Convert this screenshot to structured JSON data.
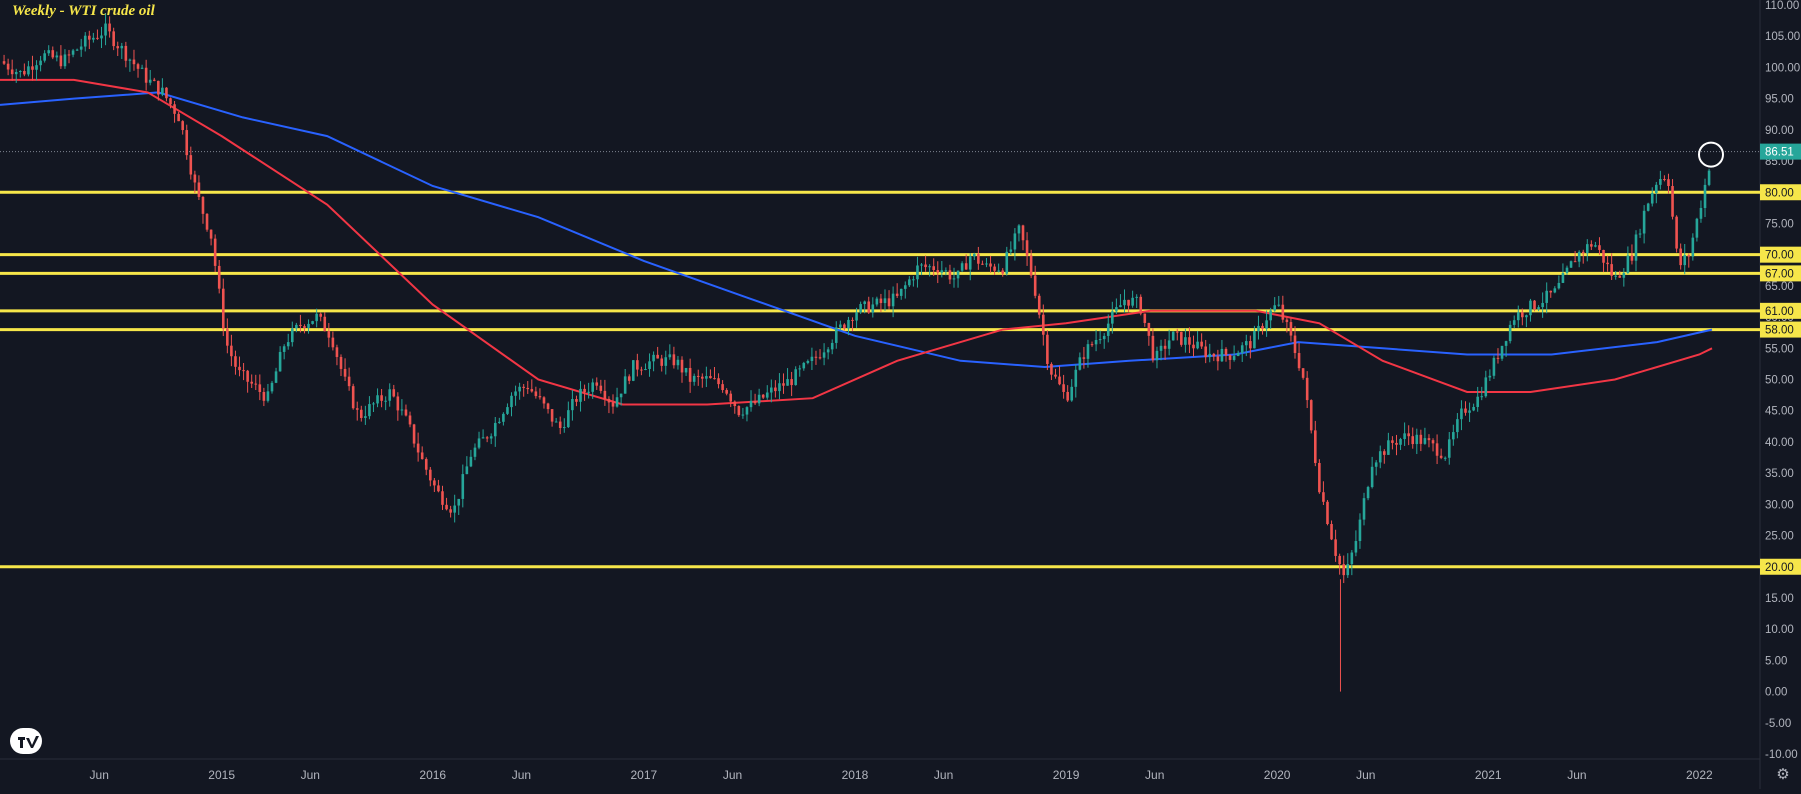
{
  "chart_data": {
    "type": "candlestick",
    "title": "Weekly - WTI crude oil",
    "ylim": [
      -10,
      110
    ],
    "y_ticks": [
      "110.00",
      "105.00",
      "100.00",
      "95.00",
      "90.00",
      "85.00",
      "80.00",
      "75.00",
      "70.00",
      "65.00",
      "60.00",
      "55.00",
      "50.00",
      "45.00",
      "40.00",
      "35.00",
      "30.00",
      "25.00",
      "20.00",
      "15.00",
      "10.00",
      "5.00",
      "0.00",
      "-5.00",
      "-10.00"
    ],
    "x_ticks": [
      {
        "label": "Jun",
        "year": 2014.42
      },
      {
        "label": "2015",
        "year": 2015.0
      },
      {
        "label": "Jun",
        "year": 2015.42
      },
      {
        "label": "2016",
        "year": 2016.0
      },
      {
        "label": "Jun",
        "year": 2016.42
      },
      {
        "label": "2017",
        "year": 2017.0
      },
      {
        "label": "Jun",
        "year": 2017.42
      },
      {
        "label": "2018",
        "year": 2018.0
      },
      {
        "label": "Jun",
        "year": 2018.42
      },
      {
        "label": "2019",
        "year": 2019.0
      },
      {
        "label": "Jun",
        "year": 2019.42
      },
      {
        "label": "2020",
        "year": 2020.0
      },
      {
        "label": "Jun",
        "year": 2020.42
      },
      {
        "label": "2021",
        "year": 2021.0
      },
      {
        "label": "Jun",
        "year": 2021.42
      },
      {
        "label": "2022",
        "year": 2022.0
      }
    ],
    "last_price": "86.51",
    "horizontal_levels": [
      "80.00",
      "70.00",
      "67.00",
      "61.00",
      "58.00",
      "20.00"
    ],
    "colors": {
      "up": "#26a69a",
      "down": "#ef5350",
      "ma_short": "#f23645",
      "ma_long": "#2962ff",
      "levels": "#f6e64a",
      "background": "#131722"
    },
    "price_path": [
      [
        2013.95,
        101
      ],
      [
        2014.05,
        99
      ],
      [
        2014.15,
        102
      ],
      [
        2014.25,
        101
      ],
      [
        2014.35,
        104
      ],
      [
        2014.45,
        106
      ],
      [
        2014.55,
        102
      ],
      [
        2014.65,
        98
      ],
      [
        2014.72,
        96
      ],
      [
        2014.8,
        92
      ],
      [
        2014.88,
        80
      ],
      [
        2014.95,
        73
      ],
      [
        2015.02,
        56
      ],
      [
        2015.08,
        51
      ],
      [
        2015.15,
        49
      ],
      [
        2015.22,
        47
      ],
      [
        2015.3,
        56
      ],
      [
        2015.38,
        59
      ],
      [
        2015.45,
        60
      ],
      [
        2015.52,
        57
      ],
      [
        2015.58,
        50
      ],
      [
        2015.65,
        44
      ],
      [
        2015.72,
        46
      ],
      [
        2015.8,
        48
      ],
      [
        2015.88,
        43
      ],
      [
        2015.95,
        37
      ],
      [
        2016.02,
        32
      ],
      [
        2016.1,
        29
      ],
      [
        2016.18,
        38
      ],
      [
        2016.28,
        42
      ],
      [
        2016.38,
        48
      ],
      [
        2016.45,
        49
      ],
      [
        2016.52,
        46
      ],
      [
        2016.6,
        42
      ],
      [
        2016.68,
        47
      ],
      [
        2016.78,
        50
      ],
      [
        2016.85,
        46
      ],
      [
        2016.95,
        52
      ],
      [
        2017.05,
        53
      ],
      [
        2017.15,
        53
      ],
      [
        2017.22,
        50
      ],
      [
        2017.3,
        50
      ],
      [
        2017.38,
        49
      ],
      [
        2017.45,
        45
      ],
      [
        2017.52,
        46
      ],
      [
        2017.6,
        48
      ],
      [
        2017.7,
        50
      ],
      [
        2017.8,
        53
      ],
      [
        2017.9,
        57
      ],
      [
        2018.0,
        61
      ],
      [
        2018.1,
        62
      ],
      [
        2018.2,
        63
      ],
      [
        2018.3,
        68
      ],
      [
        2018.4,
        68
      ],
      [
        2018.48,
        66
      ],
      [
        2018.55,
        70
      ],
      [
        2018.62,
        68
      ],
      [
        2018.7,
        68
      ],
      [
        2018.78,
        74
      ],
      [
        2018.85,
        65
      ],
      [
        2018.92,
        52
      ],
      [
        2019.0,
        47
      ],
      [
        2019.08,
        54
      ],
      [
        2019.18,
        58
      ],
      [
        2019.28,
        63
      ],
      [
        2019.35,
        62
      ],
      [
        2019.42,
        53
      ],
      [
        2019.5,
        57
      ],
      [
        2019.58,
        56
      ],
      [
        2019.68,
        54
      ],
      [
        2019.78,
        54
      ],
      [
        2019.88,
        56
      ],
      [
        2019.95,
        60
      ],
      [
        2020.0,
        62
      ],
      [
        2020.05,
        58
      ],
      [
        2020.12,
        51
      ],
      [
        2020.2,
        33
      ],
      [
        2020.28,
        22
      ],
      [
        2020.32,
        18
      ],
      [
        2020.38,
        25
      ],
      [
        2020.45,
        37
      ],
      [
        2020.55,
        40
      ],
      [
        2020.62,
        41
      ],
      [
        2020.7,
        40
      ],
      [
        2020.8,
        38
      ],
      [
        2020.88,
        45
      ],
      [
        2020.95,
        47
      ],
      [
        2021.02,
        52
      ],
      [
        2021.12,
        60
      ],
      [
        2021.22,
        62
      ],
      [
        2021.32,
        64
      ],
      [
        2021.42,
        70
      ],
      [
        2021.5,
        72
      ],
      [
        2021.6,
        66
      ],
      [
        2021.68,
        70
      ],
      [
        2021.75,
        78
      ],
      [
        2021.8,
        82
      ],
      [
        2021.85,
        83
      ],
      [
        2021.9,
        68
      ],
      [
        2021.95,
        70
      ],
      [
        2022.02,
        80
      ],
      [
        2022.06,
        86.51
      ]
    ],
    "ma_short_path": [
      [
        2013.95,
        98
      ],
      [
        2014.3,
        98
      ],
      [
        2014.65,
        96
      ],
      [
        2015.0,
        89
      ],
      [
        2015.5,
        78
      ],
      [
        2016.0,
        62
      ],
      [
        2016.5,
        50
      ],
      [
        2016.9,
        46
      ],
      [
        2017.3,
        46
      ],
      [
        2017.8,
        47
      ],
      [
        2018.2,
        53
      ],
      [
        2018.7,
        58
      ],
      [
        2019.0,
        59
      ],
      [
        2019.4,
        61
      ],
      [
        2019.9,
        61
      ],
      [
        2020.2,
        59
      ],
      [
        2020.5,
        53
      ],
      [
        2020.9,
        48
      ],
      [
        2021.2,
        48
      ],
      [
        2021.6,
        50
      ],
      [
        2022.0,
        54
      ],
      [
        2022.06,
        55
      ]
    ],
    "ma_long_path": [
      [
        2013.95,
        94
      ],
      [
        2014.3,
        95
      ],
      [
        2014.7,
        96
      ],
      [
        2015.1,
        92
      ],
      [
        2015.5,
        89
      ],
      [
        2016.0,
        81
      ],
      [
        2016.5,
        76
      ],
      [
        2017.0,
        69
      ],
      [
        2017.5,
        63
      ],
      [
        2018.0,
        57
      ],
      [
        2018.5,
        53
      ],
      [
        2018.9,
        52
      ],
      [
        2019.3,
        53
      ],
      [
        2019.8,
        54
      ],
      [
        2020.1,
        56
      ],
      [
        2020.5,
        55
      ],
      [
        2020.9,
        54
      ],
      [
        2021.3,
        54
      ],
      [
        2021.8,
        56
      ],
      [
        2022.06,
        58
      ]
    ]
  },
  "logo": {
    "text": "TV"
  },
  "settings_icon": "gear-icon"
}
